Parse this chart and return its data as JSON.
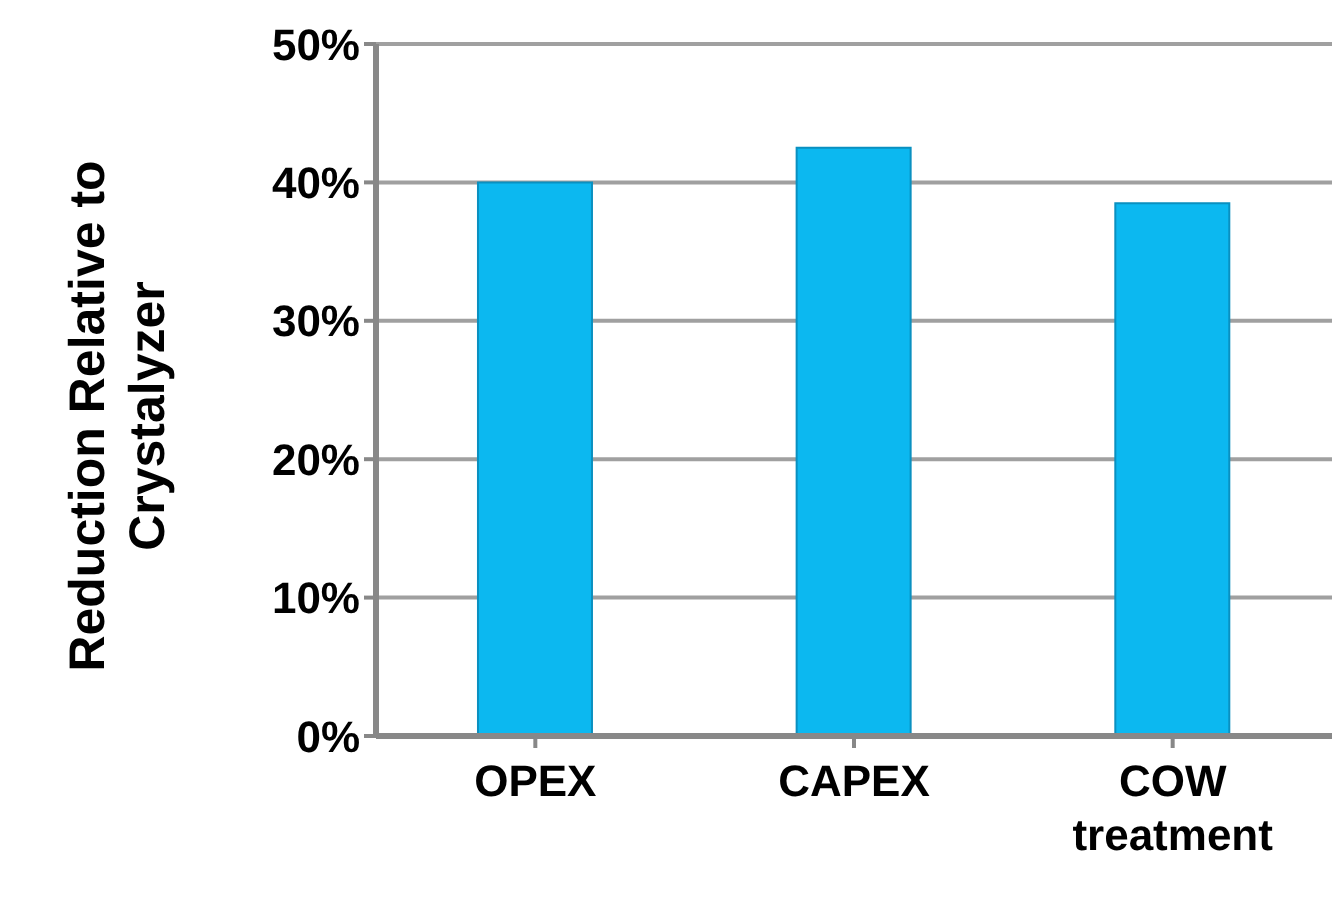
{
  "chart_data": {
    "type": "bar",
    "ylabel": "Reduction Relative to Crystalyzer",
    "categories": [
      "OPEX",
      "CAPEX",
      "COW treatment"
    ],
    "values": [
      0.4,
      0.425,
      0.385
    ],
    "color": "#0cb8f0",
    "ylim": [
      0,
      0.5
    ],
    "yticks": [
      {
        "value": 0,
        "label": "0%"
      },
      {
        "value": 0.1,
        "label": "10%"
      },
      {
        "value": 0.2,
        "label": "20%"
      },
      {
        "value": 0.3,
        "label": "30%"
      },
      {
        "value": 0.4,
        "label": "40%"
      },
      {
        "value": 0.5,
        "label": "50%"
      }
    ],
    "grid": "y"
  }
}
